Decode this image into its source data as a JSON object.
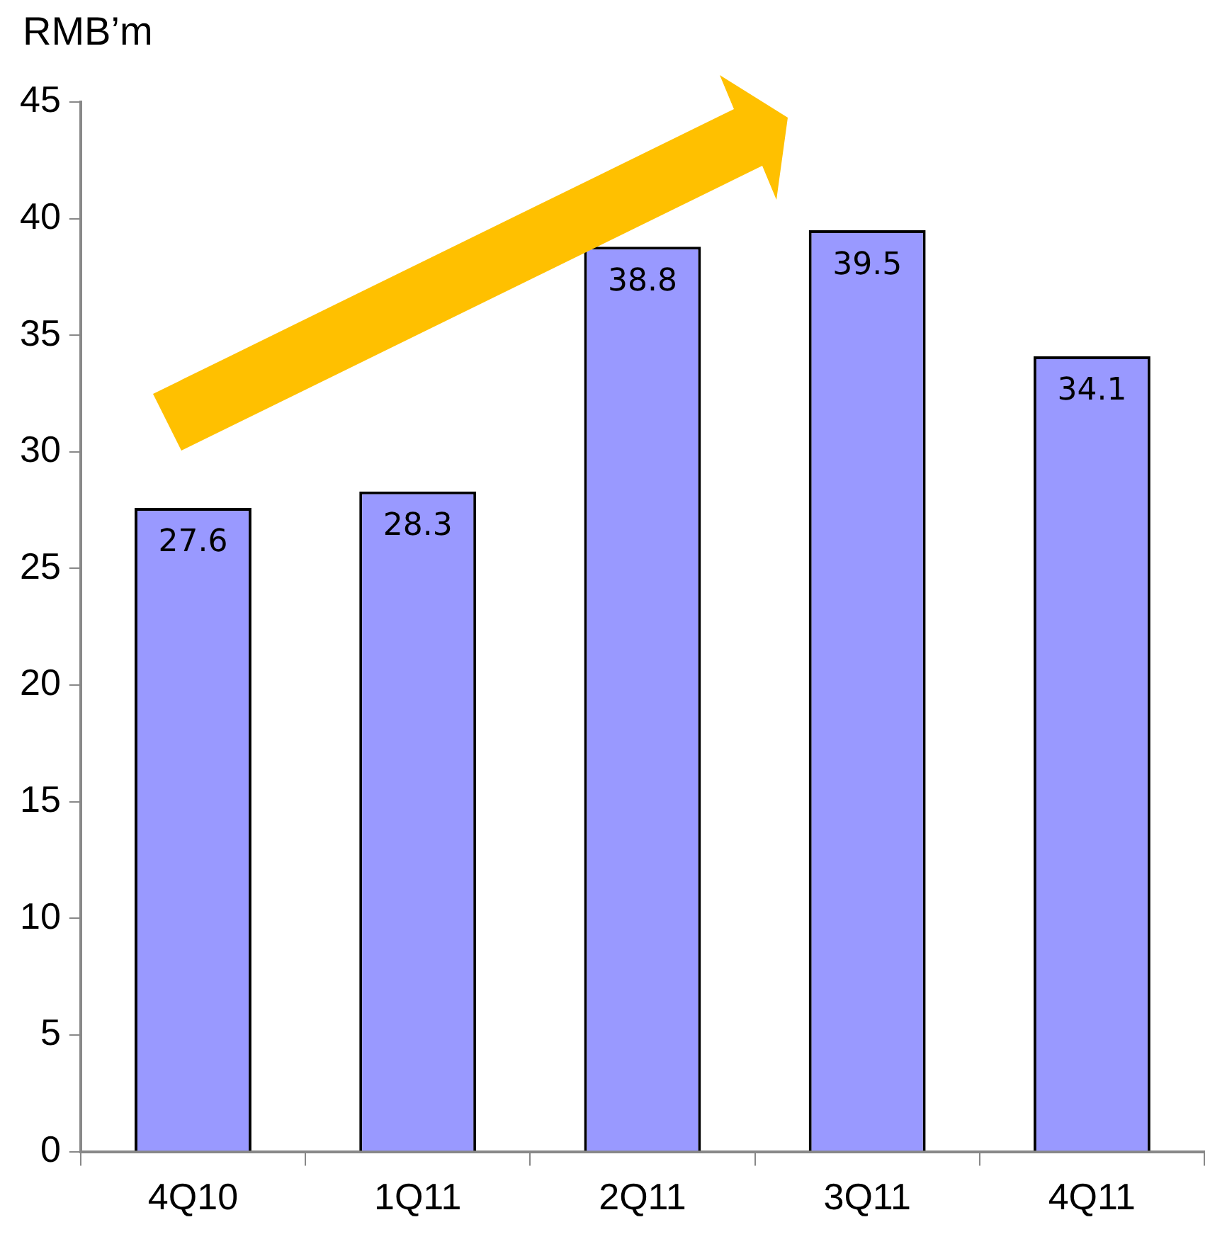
{
  "chart_data": {
    "type": "bar",
    "ylabel": "RMB’m",
    "categories": [
      "4Q10",
      "1Q11",
      "2Q11",
      "3Q11",
      "4Q11"
    ],
    "values": [
      27.6,
      28.3,
      38.8,
      39.5,
      34.1
    ],
    "color": "#9999ff",
    "ylim": [
      0,
      45
    ],
    "yticks": [
      0,
      5,
      10,
      15,
      20,
      25,
      30,
      35,
      40,
      45
    ],
    "grid": false,
    "legend": false,
    "data_labels": true
  }
}
